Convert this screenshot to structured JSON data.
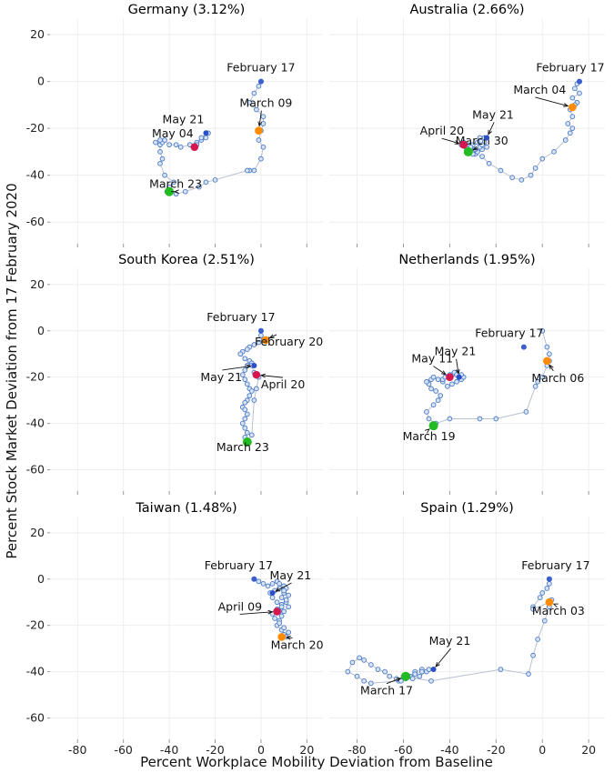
{
  "figure": {
    "xlabel": "Percent Workplace Mobility Deviation from Baseline",
    "ylabel": "Percent Stock Market Deviation from 17 February 2020",
    "xlim": [
      -92,
      27
    ],
    "ylim": [
      -70,
      27
    ],
    "xticks": [
      -80,
      -60,
      -40,
      -20,
      0,
      20
    ],
    "yticks": [
      20,
      0,
      -20,
      -40,
      -60
    ],
    "grid": true,
    "colors": {
      "path_line": "#b9c0cf",
      "marker_fill": "#d7e3f4",
      "marker_edge": "#4a79c4",
      "start_marker": "#3a5fcd",
      "first_case_marker": "#ff8c00",
      "low_marker": "#22bb22",
      "peak_marker": "#d6174f",
      "end_marker": "#2b4fc9"
    }
  },
  "chart_data": [
    {
      "type": "scatter",
      "title": "Germany (3.12%)",
      "series": [
        {
          "x": [
            0,
            -1,
            -3,
            -5,
            -2,
            1,
            1,
            0,
            -1,
            1,
            0,
            -3,
            -5,
            -6,
            -20,
            -24,
            -27,
            -33,
            -37,
            -41,
            -40,
            -38,
            -42,
            -44,
            -43,
            -44,
            -44,
            -43,
            -44,
            -46,
            -42,
            -40,
            -37,
            -35,
            -31,
            -28,
            -26,
            -24,
            -23,
            -26,
            -28,
            -29
          ],
          "y": [
            0,
            -2,
            -5,
            -9,
            -12,
            -15,
            -18,
            -21,
            -25,
            -28,
            -33,
            -38,
            -38,
            -38,
            -42,
            -43,
            -45,
            -47,
            -48,
            -47,
            -45,
            -43,
            -40,
            -35,
            -33,
            -30,
            -27,
            -26,
            -25,
            -26,
            -25,
            -27,
            -27,
            -28,
            -27,
            -26,
            -25,
            -24,
            -22,
            -24,
            -27,
            -28
          ]
        }
      ],
      "annotations": [
        {
          "label": "February 17",
          "x": 0,
          "y": 0,
          "color": "start_marker"
        },
        {
          "label": "March 09",
          "x": -1,
          "y": -21,
          "color": "first_case_marker"
        },
        {
          "label": "March 23",
          "x": -40,
          "y": -47,
          "color": "low_marker"
        },
        {
          "label": "May 04",
          "x": -29,
          "y": -28,
          "color": "peak_marker"
        },
        {
          "label": "May 21",
          "x": -24,
          "y": -22,
          "color": "end_marker"
        }
      ]
    },
    {
      "type": "scatter",
      "title": "Australia (2.66%)",
      "series": [
        {
          "x": [
            16,
            15,
            14,
            16,
            13,
            15,
            14,
            12,
            13,
            11,
            13,
            12,
            10,
            5,
            0,
            -3,
            -5,
            -9,
            -13,
            -18,
            -23,
            -26,
            -29,
            -31,
            -32,
            -34,
            -35,
            -33,
            -32,
            -30,
            -28,
            -26,
            -24,
            -25,
            -27,
            -28,
            -30,
            -31,
            -29,
            -27,
            -26,
            -25
          ],
          "y": [
            0,
            -1,
            -3,
            -5,
            -7,
            -9,
            -10,
            -12,
            -15,
            -18,
            -20,
            -22,
            -25,
            -30,
            -33,
            -37,
            -40,
            -42,
            -41,
            -38,
            -35,
            -32,
            -31,
            -29,
            -27,
            -26,
            -27,
            -28,
            -29,
            -31,
            -30,
            -29,
            -28,
            -26,
            -24,
            -26,
            -27,
            -28,
            -29,
            -28,
            -27,
            -24
          ]
        }
      ],
      "annotations": [
        {
          "label": "February 17",
          "x": 16,
          "y": 0,
          "color": "start_marker"
        },
        {
          "label": "March 04",
          "x": 13,
          "y": -11,
          "color": "first_case_marker"
        },
        {
          "label": "March 30",
          "x": -32,
          "y": -30,
          "color": "low_marker"
        },
        {
          "label": "April 20",
          "x": -34,
          "y": -27,
          "color": "peak_marker"
        },
        {
          "label": "May 21",
          "x": -24,
          "y": -24,
          "color": "end_marker"
        }
      ]
    },
    {
      "type": "scatter",
      "title": "South Korea (2.51%)",
      "series": [
        {
          "x": [
            0,
            0,
            1,
            -1,
            -3,
            -5,
            -6,
            -8,
            -9,
            -7,
            -5,
            -4,
            -6,
            -7,
            -8,
            -7,
            -6,
            -5,
            -4,
            -5,
            -6,
            -7,
            -8,
            -7,
            -6,
            -7,
            -8,
            -7,
            -6,
            -7,
            -6,
            -4,
            -3,
            -2,
            -1,
            -3,
            -4
          ],
          "y": [
            0,
            -2,
            -4,
            -5,
            -6,
            -7,
            -8,
            -9,
            -10,
            -12,
            -13,
            -14,
            -15,
            -17,
            -19,
            -21,
            -23,
            -25,
            -26,
            -28,
            -30,
            -31,
            -33,
            -34,
            -36,
            -38,
            -40,
            -42,
            -44,
            -46,
            -48,
            -45,
            -30,
            -25,
            -20,
            -18,
            -15
          ]
        }
      ],
      "annotations": [
        {
          "label": "February 17",
          "x": 0,
          "y": 0,
          "color": "start_marker"
        },
        {
          "label": "February 20",
          "x": 2,
          "y": -4,
          "color": "first_case_marker"
        },
        {
          "label": "March 23",
          "x": -6,
          "y": -48,
          "color": "low_marker"
        },
        {
          "label": "April 20",
          "x": -2,
          "y": -19,
          "color": "peak_marker"
        },
        {
          "label": "May 21",
          "x": -3,
          "y": -15,
          "color": "end_marker"
        }
      ]
    },
    {
      "type": "scatter",
      "title": "Netherlands (1.95%)",
      "series": [
        {
          "x": [
            0,
            2,
            3,
            3,
            2,
            0,
            -2,
            -3,
            -7,
            -20,
            -27,
            -40,
            -46,
            -49,
            -50,
            -47,
            -45,
            -44,
            -46,
            -48,
            -49,
            -50,
            -48,
            -47,
            -45,
            -43,
            -41,
            -39,
            -37,
            -35,
            -34,
            -35,
            -37,
            -39,
            -41,
            -43,
            -42,
            -40,
            -38,
            -37,
            -36
          ],
          "y": [
            0,
            -7,
            -10,
            -13,
            -15,
            -20,
            -22,
            -24,
            -35,
            -38,
            -38,
            -38,
            -40,
            -38,
            -35,
            -32,
            -30,
            -28,
            -26,
            -25,
            -23,
            -22,
            -21,
            -20,
            -21,
            -22,
            -24,
            -23,
            -22,
            -21,
            -20,
            -19,
            -18,
            -19,
            -20,
            -21,
            -20,
            -19,
            -18,
            -19,
            -20
          ]
        }
      ],
      "annotations": [
        {
          "label": "February 17",
          "x": -8,
          "y": -7,
          "color": "start_marker"
        },
        {
          "label": "March 06",
          "x": 2,
          "y": -13,
          "color": "first_case_marker"
        },
        {
          "label": "March 19",
          "x": -47,
          "y": -41,
          "color": "low_marker"
        },
        {
          "label": "May 11",
          "x": -40,
          "y": -20,
          "color": "peak_marker"
        },
        {
          "label": "May 21",
          "x": -36,
          "y": -20,
          "color": "end_marker"
        }
      ]
    },
    {
      "type": "scatter",
      "title": "Taiwan (1.48%)",
      "series": [
        {
          "x": [
            -3,
            -1,
            1,
            3,
            5,
            7,
            8,
            10,
            11,
            10,
            9,
            11,
            12,
            10,
            9,
            8,
            7,
            9,
            10,
            11,
            12,
            10,
            8,
            6,
            5,
            7,
            9,
            11,
            12,
            10,
            8,
            6,
            4,
            5,
            7,
            9,
            8
          ],
          "y": [
            0,
            -1,
            -2,
            -3,
            -2,
            -1,
            -2,
            -3,
            -4,
            -6,
            -8,
            -10,
            -12,
            -14,
            -16,
            -18,
            -20,
            -22,
            -24,
            -25,
            -23,
            -21,
            -19,
            -17,
            -15,
            -13,
            -11,
            -9,
            -7,
            -5,
            -4,
            -5,
            -6,
            -8,
            -10,
            -12,
            -14
          ]
        }
      ],
      "annotations": [
        {
          "label": "February 17",
          "x": -3,
          "y": 0,
          "color": "start_marker"
        },
        {
          "label": "March 20",
          "x": 9,
          "y": -25,
          "color": "first_case_marker"
        },
        {
          "label": "April 09",
          "x": 7,
          "y": -14,
          "color": "peak_marker"
        },
        {
          "label": "May 21",
          "x": 5,
          "y": -6,
          "color": "end_marker"
        }
      ]
    },
    {
      "type": "scatter",
      "title": "Spain (1.29%)",
      "series": [
        {
          "x": [
            3,
            3,
            2,
            0,
            -1,
            -4,
            -4,
            3,
            4,
            3,
            1,
            -2,
            -4,
            -6,
            -18,
            -48,
            -60,
            -62,
            -74,
            -77,
            -80,
            -84,
            -82,
            -79,
            -77,
            -74,
            -71,
            -68,
            -66,
            -63,
            -61,
            -59,
            -57,
            -55,
            -52,
            -50,
            -53,
            -56,
            -58,
            -55,
            -52,
            -49
          ],
          "y": [
            0,
            -2,
            -4,
            -6,
            -8,
            -12,
            -13,
            -10,
            -9,
            -12,
            -18,
            -26,
            -33,
            -41,
            -39,
            -44,
            -42,
            -44,
            -45,
            -44,
            -42,
            -40,
            -36,
            -34,
            -35,
            -37,
            -39,
            -40,
            -42,
            -43,
            -44,
            -43,
            -42,
            -40,
            -39,
            -40,
            -42,
            -43,
            -42,
            -41,
            -40,
            -39
          ]
        }
      ],
      "annotations": [
        {
          "label": "February 17",
          "x": 3,
          "y": 0,
          "color": "start_marker"
        },
        {
          "label": "March 03",
          "x": 3,
          "y": -10,
          "color": "first_case_marker"
        },
        {
          "label": "March 17",
          "x": -59,
          "y": -42,
          "color": "low_marker"
        },
        {
          "label": "May 21",
          "x": -47,
          "y": -39,
          "color": "end_marker"
        }
      ]
    }
  ]
}
